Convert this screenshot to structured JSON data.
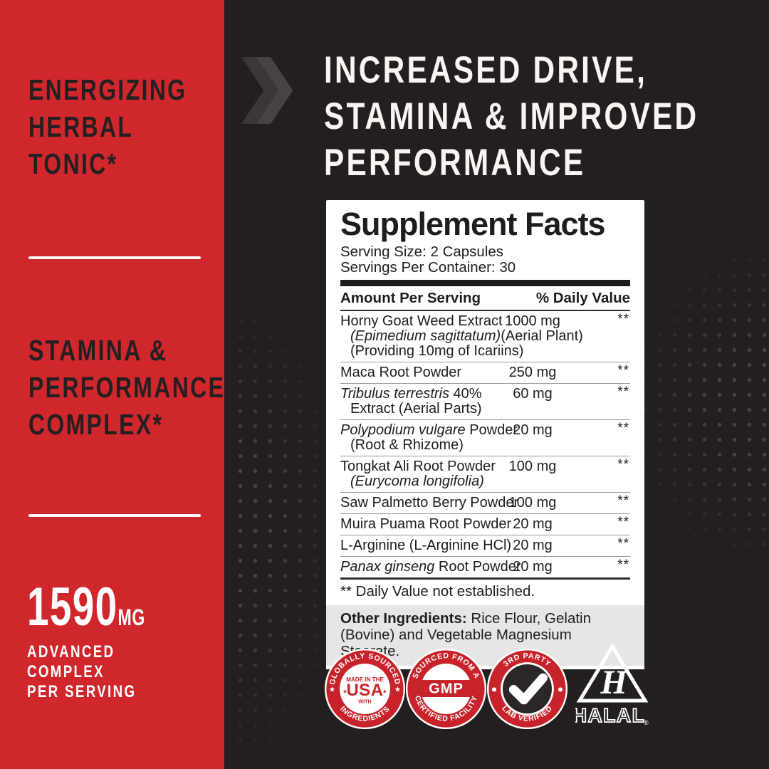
{
  "colors": {
    "panel_red": "#D0272C",
    "badge_red": "#C8232B",
    "background_dark": "#231F20",
    "chevron_gray_dark": "#3B3738",
    "chevron_gray_light": "#474243",
    "dot_gray": "#4D4849",
    "other_ingredients_gray": "#E7E6E6",
    "text_dark": "#241F20",
    "text_white": "#F7F4F1"
  },
  "left_panel": {
    "tagline1": {
      "line1": "ENERGIZING",
      "line2": "HERBAL",
      "line3": "TONIC*"
    },
    "tagline2": {
      "line1": "STAMINA &",
      "line2": "PERFORMANCE",
      "line3": "COMPLEX*"
    },
    "dose": {
      "value": "1590",
      "unit": "MG",
      "desc1": "ADVANCED",
      "desc2": "COMPLEX",
      "desc3": "PER SERVING"
    }
  },
  "headline": {
    "line1": "INCREASED DRIVE,",
    "line2": "STAMINA & IMPROVED",
    "line3": "PERFORMANCE"
  },
  "supplement_facts": {
    "title": "Supplement Facts",
    "serving_size": "Serving Size: 2 Capsules",
    "servings_per_container": "Servings Per Container: 30",
    "amount_header": "Amount Per Serving",
    "dv_header": "% Daily Value",
    "rows": [
      {
        "main": [
          {
            "t": "Horny Goat Weed Extract",
            "i": false
          }
        ],
        "sub": [
          {
            "t": "(Epimedium sagittatum)",
            "i": true
          },
          {
            "t": "(Aerial Plant) (Providing 10mg of Icariins)",
            "i": false
          }
        ],
        "amount": "1000 mg",
        "dv": "**"
      },
      {
        "main": [
          {
            "t": "Maca Root Powder",
            "i": false
          }
        ],
        "sub": [],
        "amount": "250 mg",
        "dv": "**"
      },
      {
        "main": [
          {
            "t": "Tribulus terrestris",
            "i": true
          },
          {
            "t": " 40%",
            "i": false
          }
        ],
        "sub": [
          {
            "t": "Extract (Aerial Parts)",
            "i": false
          }
        ],
        "amount": "60 mg",
        "dv": "**"
      },
      {
        "main": [
          {
            "t": "Polypodium vulgare",
            "i": true
          },
          {
            "t": " Powder",
            "i": false
          }
        ],
        "sub": [
          {
            "t": "(Root & Rhizome)",
            "i": false
          }
        ],
        "amount": "20 mg",
        "dv": "**"
      },
      {
        "main": [
          {
            "t": "Tongkat Ali Root Powder",
            "i": false
          }
        ],
        "sub": [
          {
            "t": "(Eurycoma longifolia)",
            "i": true
          }
        ],
        "amount": "100 mg",
        "dv": "**"
      },
      {
        "main": [
          {
            "t": "Saw Palmetto Berry Powder",
            "i": false
          }
        ],
        "sub": [],
        "amount": "100 mg",
        "dv": "**"
      },
      {
        "main": [
          {
            "t": "Muira Puama Root Powder",
            "i": false
          }
        ],
        "sub": [],
        "amount": "20 mg",
        "dv": "**"
      },
      {
        "main": [
          {
            "t": "L-Arginine (L-Arginine HCl)",
            "i": false
          }
        ],
        "sub": [],
        "amount": "20 mg",
        "dv": "**"
      },
      {
        "main": [
          {
            "t": "Panax ginseng",
            "i": true
          },
          {
            "t": " Root Powder",
            "i": false
          }
        ],
        "sub": [],
        "amount": "20 mg",
        "dv": "**"
      }
    ],
    "footnote": "** Daily Value not established.",
    "other_label": "Other Ingredients:",
    "other_text": " Rice Flour, Gelatin (Bovine) and Vegetable Magnesium Stearate."
  },
  "badges": [
    {
      "top": "GLOBALLY SOURCED",
      "bottom": "INGREDIENTS",
      "center_top": "MADE IN THE",
      "center_main": "USA",
      "center_bottom": "WITH"
    },
    {
      "top": "SOURCED FROM A",
      "bottom": "CERTIFIED FACILITY",
      "center_main": "GMP"
    },
    {
      "top": "3RD PARTY",
      "bottom": "LAB VERIFIED"
    }
  ],
  "halal": {
    "initial": "H",
    "label": "HALAL",
    "reg": "®"
  }
}
